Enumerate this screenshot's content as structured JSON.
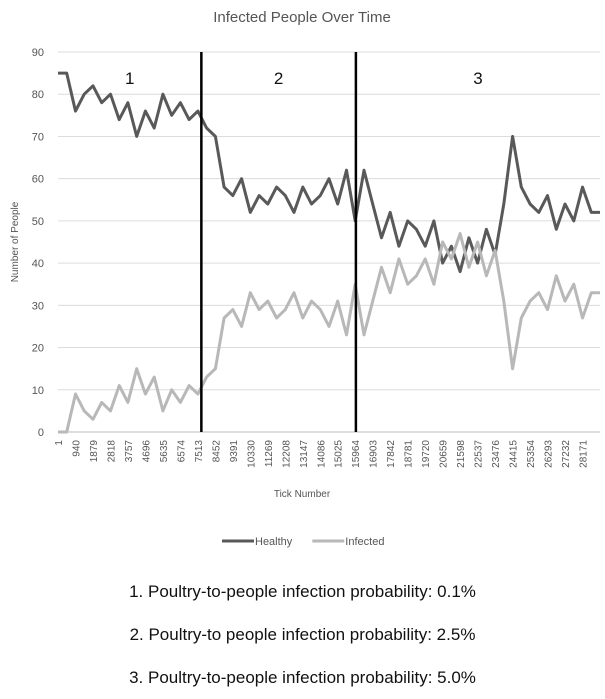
{
  "chart_data": {
    "type": "line",
    "title": "Infected People Over Time",
    "x_label": "Tick Number",
    "y_label": "Number of People",
    "x": [
      1,
      470,
      940,
      1410,
      1879,
      2349,
      2818,
      3288,
      3757,
      4227,
      4696,
      5166,
      5635,
      6105,
      6574,
      7044,
      7513,
      7983,
      8452,
      8922,
      9391,
      9861,
      10330,
      10800,
      11269,
      11739,
      12208,
      12678,
      13147,
      13617,
      14086,
      14556,
      15025,
      15495,
      15964,
      16434,
      16903,
      17373,
      17842,
      18312,
      18781,
      19251,
      19720,
      20190,
      20659,
      21129,
      21598,
      22068,
      22537,
      23007,
      23476,
      23946,
      24415,
      24885,
      25354,
      25824,
      26293,
      26763,
      27232,
      27702,
      28171,
      28641,
      29110
    ],
    "series": [
      {
        "name": "Healthy",
        "color": "#595959",
        "values": [
          85,
          85,
          76,
          80,
          82,
          78,
          80,
          74,
          78,
          70,
          76,
          72,
          80,
          75,
          78,
          74,
          76,
          72,
          70,
          58,
          56,
          60,
          52,
          56,
          54,
          58,
          56,
          52,
          58,
          54,
          56,
          60,
          54,
          62,
          50,
          62,
          54,
          46,
          52,
          44,
          50,
          48,
          44,
          50,
          40,
          44,
          38,
          46,
          40,
          48,
          42,
          54,
          70,
          58,
          54,
          52,
          56,
          48,
          54,
          50,
          58,
          52,
          52
        ]
      },
      {
        "name": "Infected",
        "color": "#b8b8b8",
        "values": [
          0,
          0,
          9,
          5,
          3,
          7,
          5,
          11,
          7,
          15,
          9,
          13,
          5,
          10,
          7,
          11,
          9,
          13,
          15,
          27,
          29,
          25,
          33,
          29,
          31,
          27,
          29,
          33,
          27,
          31,
          29,
          25,
          31,
          23,
          35,
          23,
          31,
          39,
          33,
          41,
          35,
          37,
          41,
          35,
          45,
          41,
          47,
          39,
          45,
          37,
          43,
          31,
          15,
          27,
          31,
          33,
          29,
          37,
          31,
          35,
          27,
          33,
          33
        ]
      }
    ],
    "xlim": [
      1,
      29110
    ],
    "xticks": [
      1,
      940,
      1879,
      2818,
      3757,
      4696,
      5635,
      6574,
      7513,
      8452,
      9391,
      10330,
      11269,
      12208,
      13147,
      14086,
      15025,
      15964,
      16903,
      17842,
      18781,
      19720,
      20659,
      21598,
      22537,
      23476,
      24415,
      25354,
      26293,
      27232,
      28171
    ],
    "ylim": [
      0,
      90
    ],
    "yticks": [
      0,
      10,
      20,
      30,
      40,
      50,
      60,
      70,
      80,
      90
    ],
    "grid": true,
    "dividers": [
      7700,
      16000
    ],
    "annotations": [
      "1",
      "2",
      "3"
    ],
    "notes": [
      "1. Poultry-to-people infection probability: 0.1%",
      "2. Poultry-to people infection probability: 2.5%",
      "3. Poultry-to-people infection probability: 5.0%"
    ]
  }
}
